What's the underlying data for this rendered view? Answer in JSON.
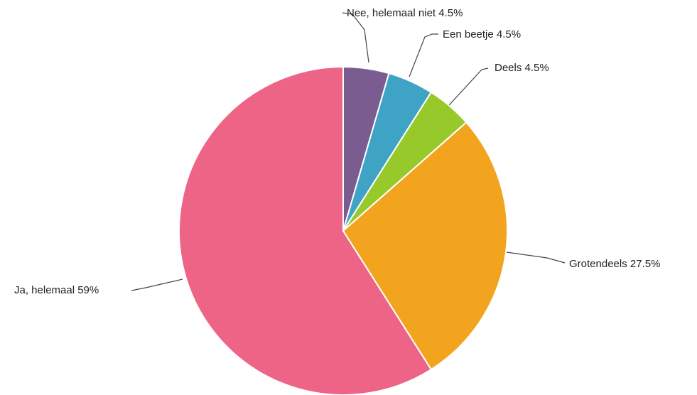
{
  "chart_data": {
    "type": "pie",
    "title": "",
    "slices": [
      {
        "label": "Nee, helemaal niet",
        "value": 4.5,
        "display": "Nee, helemaal niet 4.5%",
        "color": "#7a5c91"
      },
      {
        "label": "Een beetje",
        "value": 4.5,
        "display": "Een beetje 4.5%",
        "color": "#3ea3c4"
      },
      {
        "label": "Deels",
        "value": 4.5,
        "display": "Deels 4.5%",
        "color": "#97c92b"
      },
      {
        "label": "Grotendeels",
        "value": 27.5,
        "display": "Grotendeels 27.5%",
        "color": "#f2a41e"
      },
      {
        "label": "Ja, helemaal",
        "value": 59,
        "display": "Ja, helemaal 59%",
        "color": "#ee6486"
      }
    ],
    "start": "top",
    "direction": "clockwise",
    "legend": "none"
  }
}
